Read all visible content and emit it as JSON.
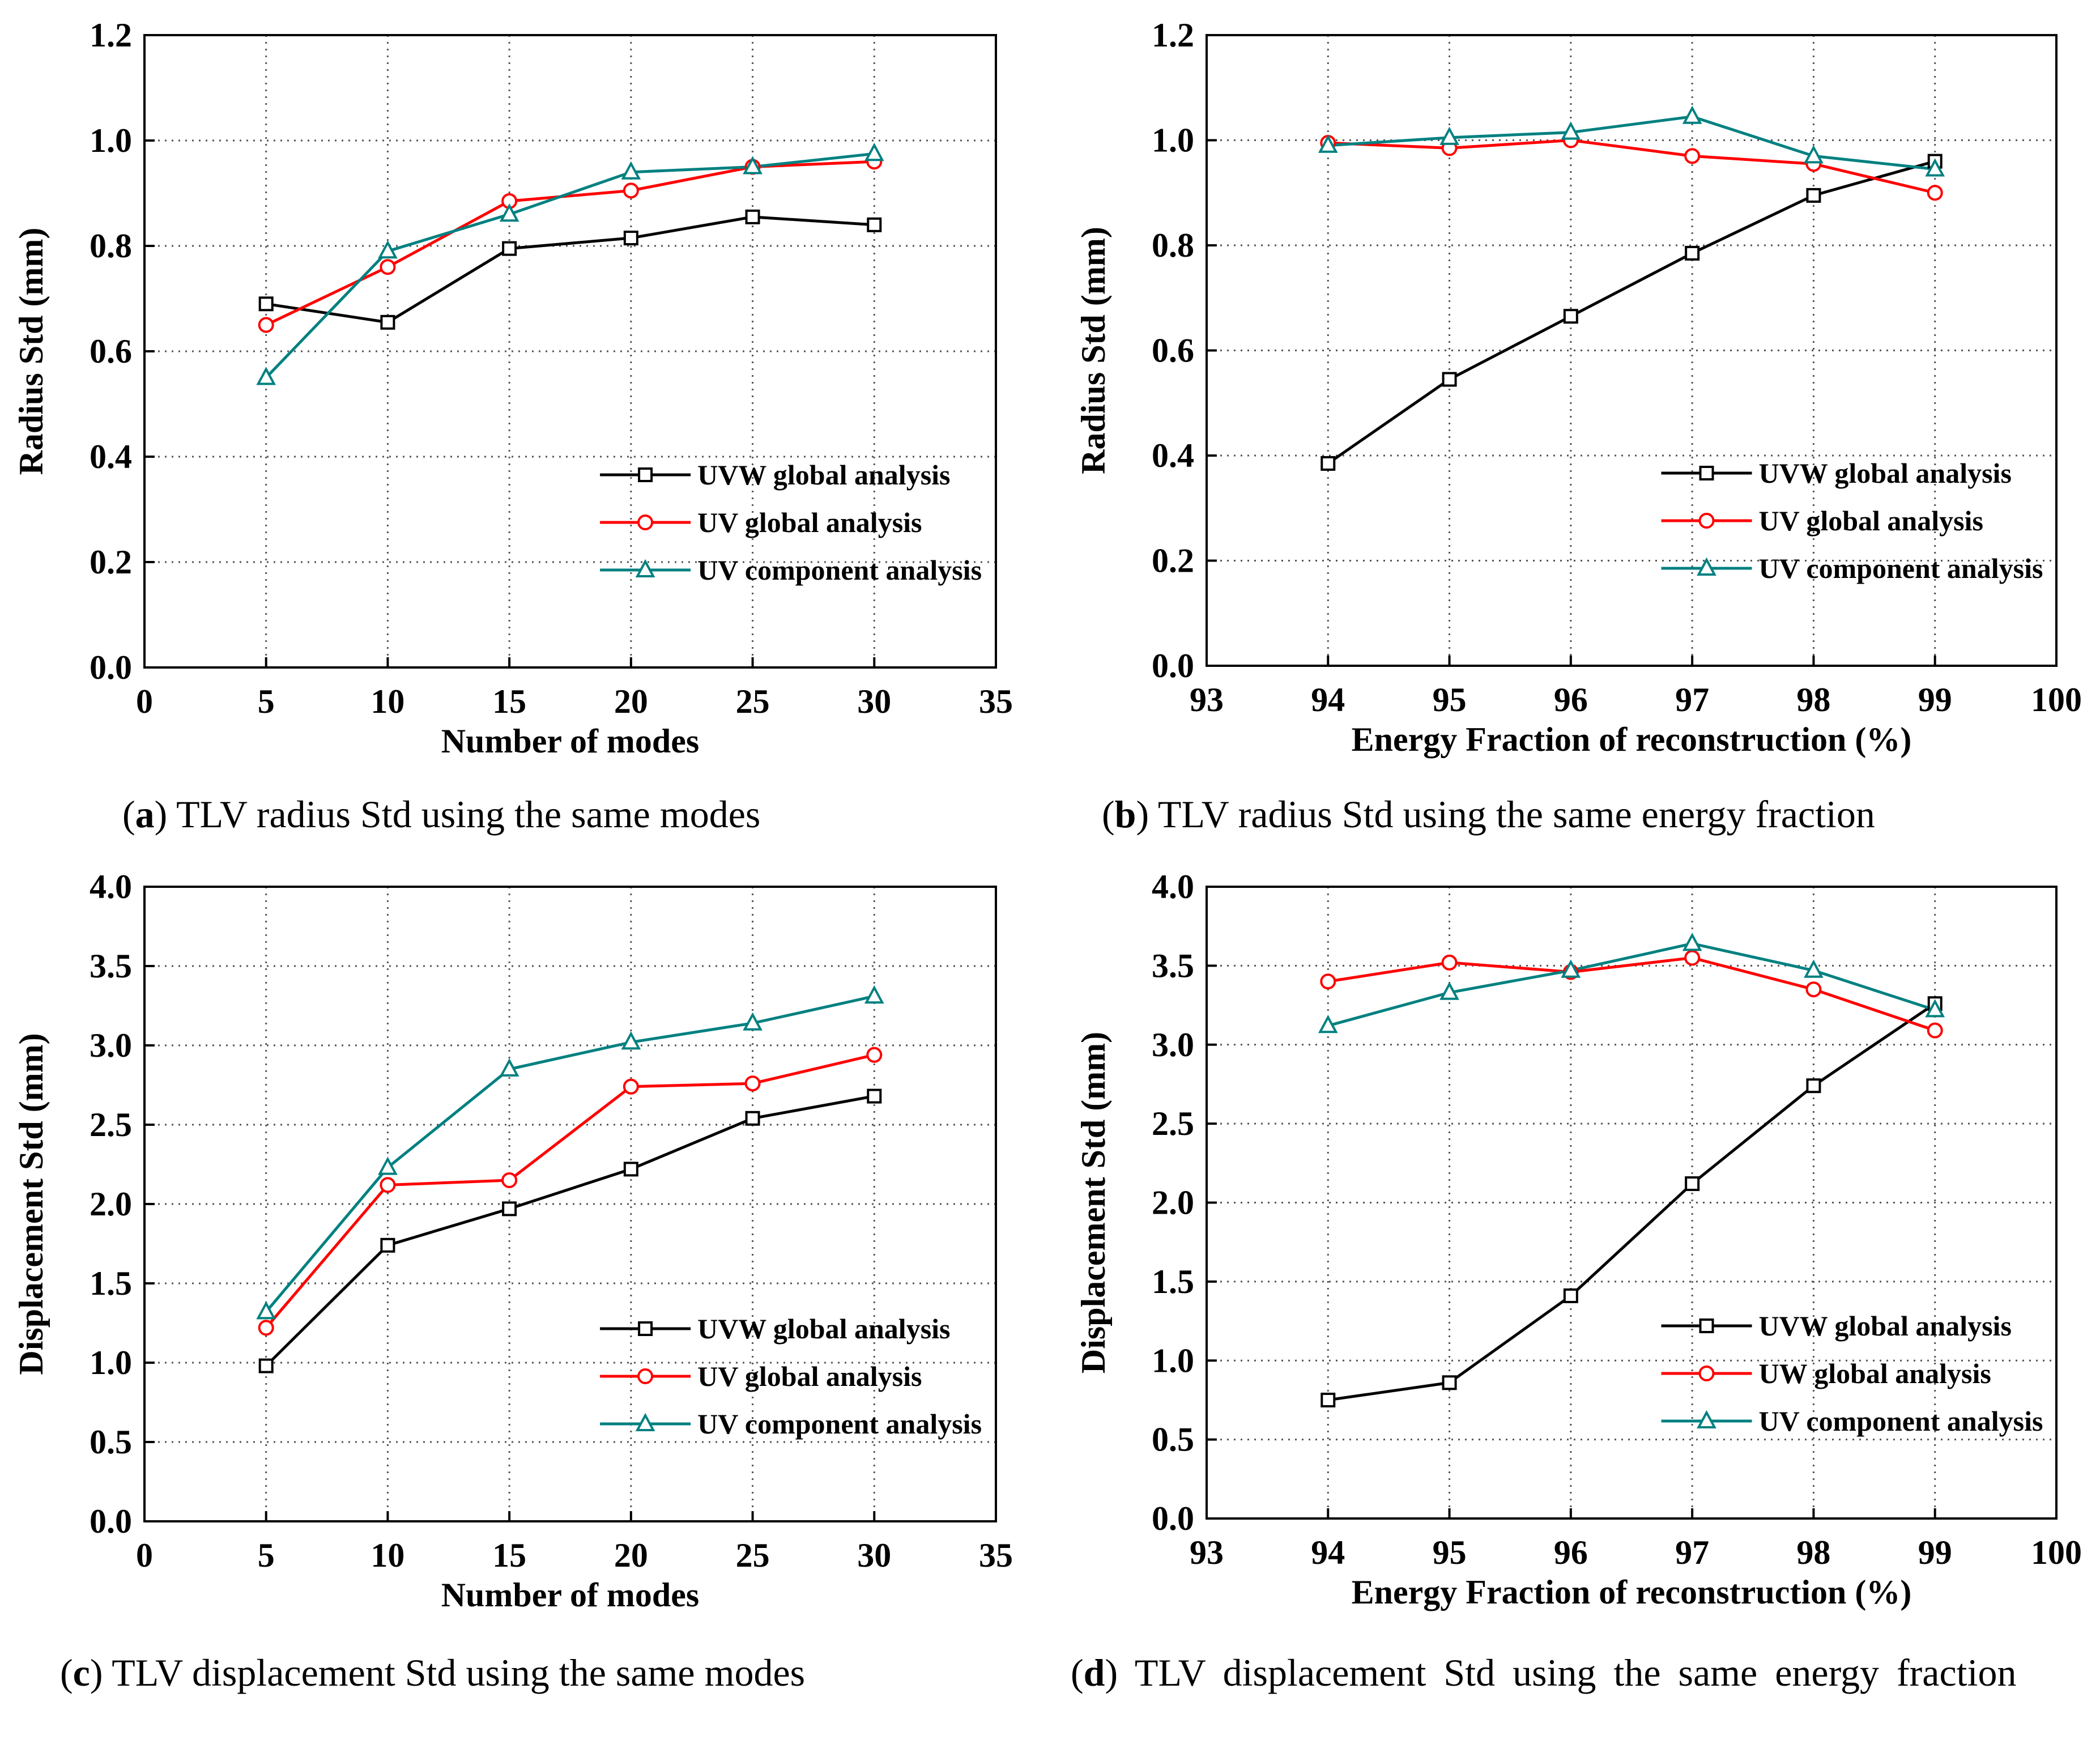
{
  "colors": {
    "uvw": "#000000",
    "uv_global": "#ff0000",
    "uv_component": "#008080",
    "grid": "#555555"
  },
  "captions": [
    {
      "letter": "a",
      "text": " TLV radius Std using the same modes"
    },
    {
      "letter": "b",
      "text": " TLV radius Std using the same energy fraction"
    },
    {
      "letter": "c",
      "text": " TLV displacement Std using the same modes"
    },
    {
      "letter": "d",
      "text": " TLV displacement Std using the same energy fraction"
    }
  ],
  "chart_data": [
    {
      "id": "a",
      "type": "line",
      "xlabel": "Number of modes",
      "ylabel": "Radius Std (mm)",
      "xlim": [
        0,
        35
      ],
      "ylim": [
        0,
        1.2
      ],
      "xticks": [
        "0",
        "5",
        "10",
        "15",
        "20",
        "25",
        "30",
        "35"
      ],
      "yticks": [
        "0.0",
        "0.2",
        "0.4",
        "0.6",
        "0.8",
        "1.0",
        "1.2"
      ],
      "x": [
        5,
        10,
        15,
        20,
        25,
        30
      ],
      "series": [
        {
          "name": "UVW global analysis",
          "marker": "square",
          "color": "#000000",
          "values": [
            0.69,
            0.655,
            0.795,
            0.815,
            0.855,
            0.84
          ]
        },
        {
          "name": "UV global analysis",
          "marker": "circle",
          "color": "#ff0000",
          "values": [
            0.65,
            0.76,
            0.885,
            0.905,
            0.95,
            0.96
          ]
        },
        {
          "name": "UV component analysis",
          "marker": "triangle",
          "color": "#008080",
          "values": [
            0.55,
            0.79,
            0.86,
            0.94,
            0.95,
            0.975
          ]
        }
      ],
      "legend": "lower-right",
      "grid": true
    },
    {
      "id": "b",
      "type": "line",
      "xlabel": "Energy Fraction of reconstruction (%)",
      "ylabel": "Radius Std (mm)",
      "xlim": [
        93,
        100
      ],
      "ylim": [
        0,
        1.2
      ],
      "xticks": [
        "93",
        "94",
        "95",
        "96",
        "97",
        "98",
        "99",
        "100"
      ],
      "yticks": [
        "0.0",
        "0.2",
        "0.4",
        "0.6",
        "0.8",
        "1.0",
        "1.2"
      ],
      "x": [
        94,
        95,
        96,
        97,
        98,
        99
      ],
      "series": [
        {
          "name": "UVW global analysis",
          "marker": "square",
          "color": "#000000",
          "values": [
            0.385,
            0.545,
            0.665,
            0.785,
            0.895,
            0.96
          ]
        },
        {
          "name": "UV global analysis",
          "marker": "circle",
          "color": "#ff0000",
          "values": [
            0.995,
            0.985,
            1.0,
            0.97,
            0.955,
            0.9
          ]
        },
        {
          "name": "UV component analysis",
          "marker": "triangle",
          "color": "#008080",
          "values": [
            0.99,
            1.005,
            1.015,
            1.045,
            0.97,
            0.945
          ]
        }
      ],
      "legend": "lower-right",
      "grid": true
    },
    {
      "id": "c",
      "type": "line",
      "xlabel": "Number of modes",
      "ylabel": "Displacement Std (mm)",
      "xlim": [
        0,
        35
      ],
      "ylim": [
        0,
        4.0
      ],
      "xticks": [
        "0",
        "5",
        "10",
        "15",
        "20",
        "25",
        "30",
        "35"
      ],
      "yticks": [
        "0.0",
        "0.5",
        "1.0",
        "1.5",
        "2.0",
        "2.5",
        "3.0",
        "3.5",
        "4.0"
      ],
      "x": [
        5,
        10,
        15,
        20,
        25,
        30
      ],
      "series": [
        {
          "name": "UVW global analysis",
          "marker": "square",
          "color": "#000000",
          "values": [
            0.98,
            1.74,
            1.97,
            2.22,
            2.54,
            2.68
          ]
        },
        {
          "name": "UV global analysis",
          "marker": "circle",
          "color": "#ff0000",
          "values": [
            1.22,
            2.12,
            2.15,
            2.74,
            2.76,
            2.94
          ]
        },
        {
          "name": " UV component analysis",
          "marker": "triangle",
          "color": "#008080",
          "values": [
            1.32,
            2.23,
            2.85,
            3.02,
            3.14,
            3.31
          ]
        }
      ],
      "legend": "lower-right",
      "grid": true
    },
    {
      "id": "d",
      "type": "line",
      "xlabel": "Energy Fraction of reconstruction (%)",
      "ylabel": "Displacement Std (mm)",
      "xlim": [
        93,
        100
      ],
      "ylim": [
        0,
        4.0
      ],
      "xticks": [
        "93",
        "94",
        "95",
        "96",
        "97",
        "98",
        "99",
        "100"
      ],
      "yticks": [
        "0.0",
        "0.5",
        "1.0",
        "1.5",
        "2.0",
        "2.5",
        "3.0",
        "3.5",
        "4.0"
      ],
      "x": [
        94,
        95,
        96,
        97,
        98,
        99
      ],
      "series": [
        {
          "name": "UVW global analysis",
          "marker": "square",
          "color": "#000000",
          "values": [
            0.75,
            0.86,
            1.41,
            2.12,
            2.74,
            3.26
          ]
        },
        {
          "name": "UW global analysis",
          "marker": "circle",
          "color": "#ff0000",
          "values": [
            3.4,
            3.52,
            3.46,
            3.55,
            3.35,
            3.09
          ]
        },
        {
          "name": "UV component analysis",
          "marker": "triangle",
          "color": "#008080",
          "values": [
            3.12,
            3.33,
            3.47,
            3.64,
            3.47,
            3.22
          ]
        }
      ],
      "legend": "lower-right",
      "grid": true
    }
  ]
}
